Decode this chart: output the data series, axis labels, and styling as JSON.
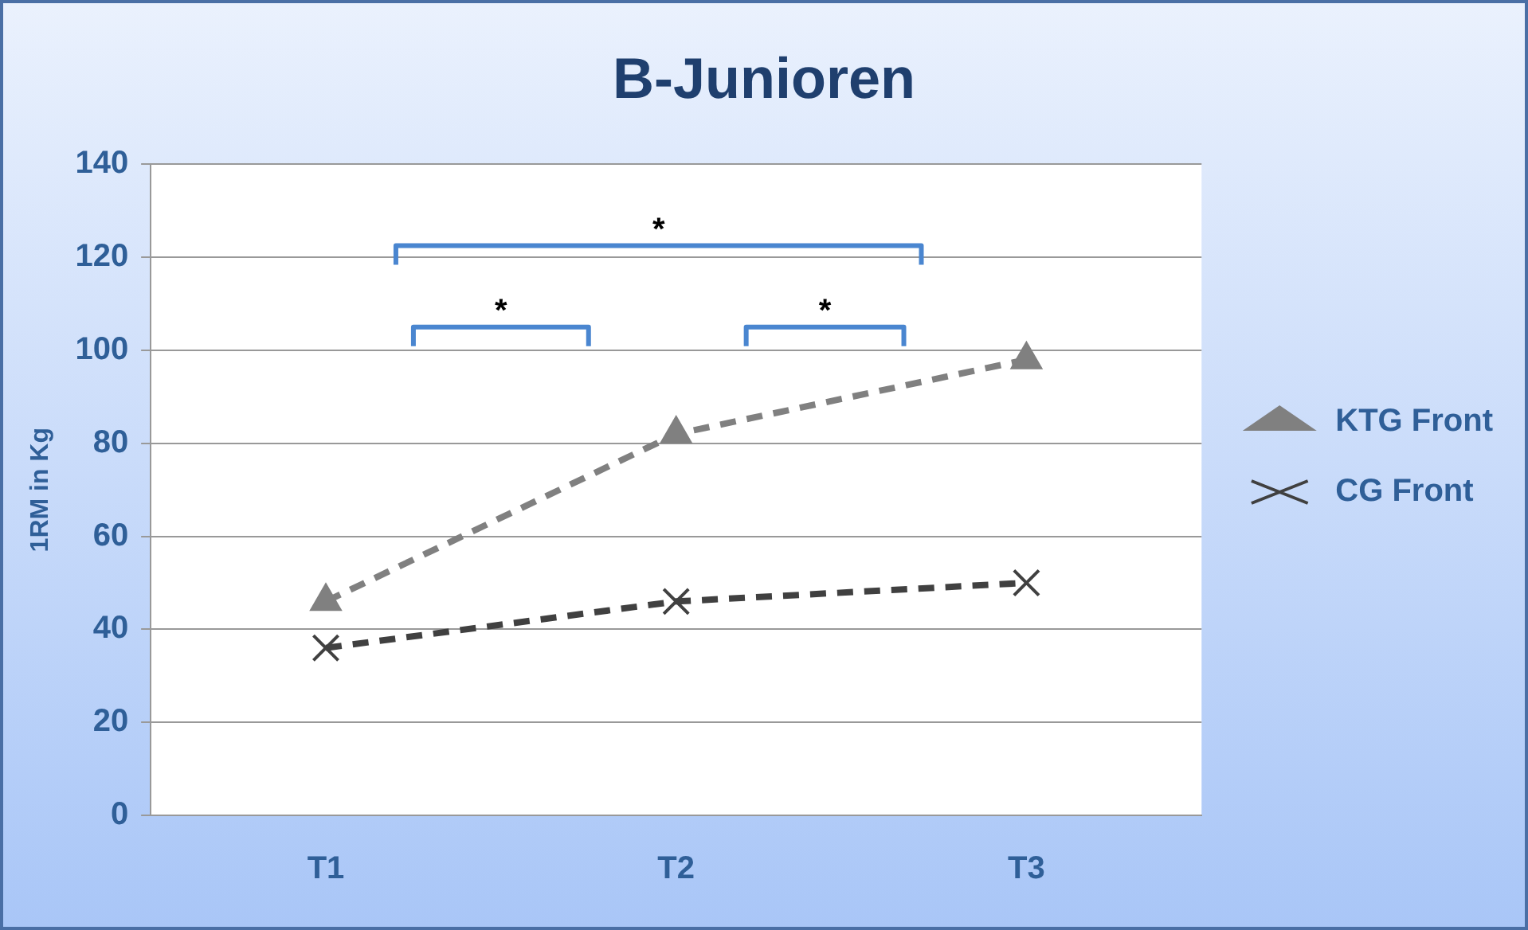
{
  "chart_data": {
    "type": "line",
    "title": "B-Junioren",
    "ylabel": "1RM in Kg",
    "categories": [
      "T1",
      "T2",
      "T3"
    ],
    "series": [
      {
        "name": "KTG Front",
        "color": "#808080",
        "values": [
          46,
          82,
          98
        ],
        "marker": "triangle"
      },
      {
        "name": "CG Front",
        "color": "#404040",
        "values": [
          36,
          46,
          50
        ],
        "marker": "cross"
      }
    ],
    "ylim": [
      0,
      140
    ],
    "yticks": [
      0,
      20,
      40,
      60,
      80,
      100,
      120,
      140
    ],
    "grid": "y",
    "legend": "right",
    "line_style": "dashed",
    "annotations": [
      "*",
      "*",
      "*"
    ]
  }
}
